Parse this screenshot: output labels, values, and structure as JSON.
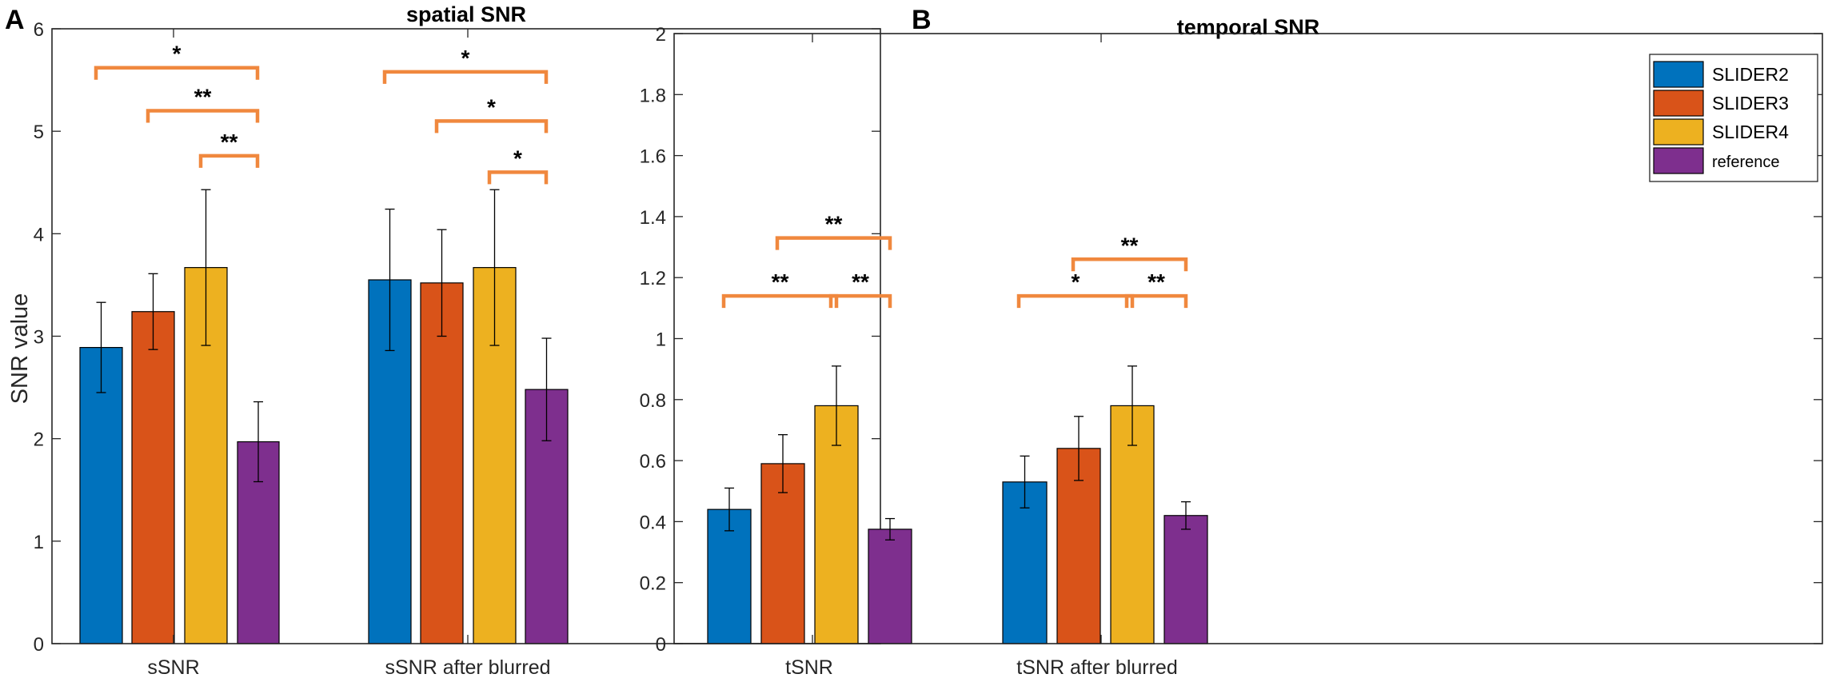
{
  "figure": {
    "panel_a_label": "A",
    "panel_b_label": "B",
    "ylabel": "SNR value"
  },
  "colors": {
    "SLIDER2": "#0072BD",
    "SLIDER3": "#D95319",
    "SLIDER4": "#EDB120",
    "reference": "#7E2F8E",
    "bracket": "#F0883E",
    "axis": "#262626"
  },
  "chart_data": [
    {
      "type": "bar",
      "title": "spatial SNR",
      "ylabel": "SNR value",
      "ylim": [
        0,
        6
      ],
      "yticks": [
        0,
        1,
        2,
        3,
        4,
        5,
        6
      ],
      "ytick_labels": [
        "0",
        "1",
        "2",
        "3",
        "4",
        "5",
        "6"
      ],
      "categories": [
        "sSNR",
        "sSNR after blurred"
      ],
      "series": [
        {
          "name": "SLIDER2",
          "values": [
            2.89,
            3.55
          ],
          "errors": [
            0.44,
            0.69
          ]
        },
        {
          "name": "SLIDER3",
          "values": [
            3.24,
            3.52
          ],
          "errors": [
            0.37,
            0.52
          ]
        },
        {
          "name": "SLIDER4",
          "values": [
            3.67,
            3.67
          ],
          "errors": [
            0.76,
            0.76
          ]
        },
        {
          "name": "reference",
          "values": [
            1.97,
            2.48
          ],
          "errors": [
            0.39,
            0.5
          ]
        }
      ],
      "significance": [
        {
          "group": 0,
          "from": 0,
          "to": 3,
          "level": 5.62,
          "label": "*"
        },
        {
          "group": 0,
          "from": 1,
          "to": 3,
          "level": 5.2,
          "label": "**"
        },
        {
          "group": 0,
          "from": 2,
          "to": 3,
          "level": 4.76,
          "label": "**"
        },
        {
          "group": 1,
          "from": 0,
          "to": 3,
          "level": 5.58,
          "label": "*"
        },
        {
          "group": 1,
          "from": 1,
          "to": 3,
          "level": 5.1,
          "label": "*"
        },
        {
          "group": 1,
          "from": 2,
          "to": 3,
          "level": 4.6,
          "label": "*"
        }
      ]
    },
    {
      "type": "bar",
      "title": "temporal SNR",
      "ylim": [
        0,
        2
      ],
      "yticks": [
        0,
        0.2,
        0.4,
        0.6,
        0.8,
        1,
        1.2,
        1.4,
        1.6,
        1.8,
        2
      ],
      "ytick_labels": [
        "0",
        "0.2",
        "0.4",
        "0.6",
        "0.8",
        "1",
        "1.2",
        "1.4",
        "1.6",
        "1.8",
        "2"
      ],
      "categories": [
        "tSNR",
        "tSNR after blurred"
      ],
      "series": [
        {
          "name": "SLIDER2",
          "values": [
            0.44,
            0.53
          ],
          "errors": [
            0.07,
            0.085
          ]
        },
        {
          "name": "SLIDER3",
          "values": [
            0.59,
            0.64
          ],
          "errors": [
            0.095,
            0.105
          ]
        },
        {
          "name": "SLIDER4",
          "values": [
            0.78,
            0.78
          ],
          "errors": [
            0.13,
            0.13
          ]
        },
        {
          "name": "reference",
          "values": [
            0.375,
            0.42
          ],
          "errors": [
            0.035,
            0.045
          ]
        }
      ],
      "significance": [
        {
          "group": 0,
          "from": 0,
          "to": 2,
          "level": 1.14,
          "label": "**"
        },
        {
          "group": 0,
          "from": 1,
          "to": 3,
          "level": 1.33,
          "label": "**"
        },
        {
          "group": 0,
          "from": 2,
          "to": 3,
          "level": 1.14,
          "label": "**"
        },
        {
          "group": 1,
          "from": 0,
          "to": 2,
          "level": 1.14,
          "label": "*"
        },
        {
          "group": 1,
          "from": 1,
          "to": 3,
          "level": 1.26,
          "label": "**"
        },
        {
          "group": 1,
          "from": 2,
          "to": 3,
          "level": 1.14,
          "label": "**"
        }
      ],
      "legend": {
        "position": "top-right",
        "entries": [
          "SLIDER2",
          "SLIDER3",
          "SLIDER4",
          "reference"
        ]
      }
    }
  ]
}
